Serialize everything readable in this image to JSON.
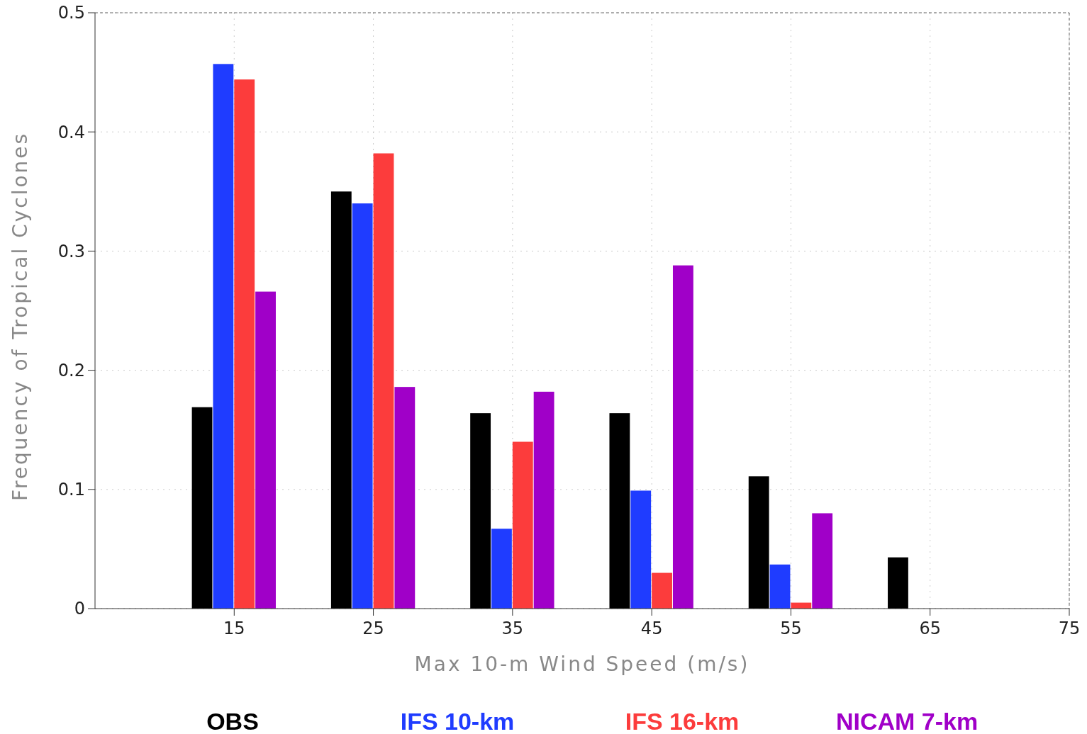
{
  "chart_data": {
    "type": "bar",
    "xlabel": "Max 10-m Wind Speed (m/s)",
    "ylabel": "Frequency of Tropical Cyclones",
    "x": [
      15,
      25,
      35,
      45,
      55,
      65
    ],
    "series": [
      {
        "name": "OBS",
        "color": "#000000",
        "values": [
          0.169,
          0.35,
          0.164,
          0.164,
          0.111,
          0.043
        ]
      },
      {
        "name": "IFS 10-km",
        "color": "#1f3cff",
        "values": [
          0.457,
          0.34,
          0.067,
          0.099,
          0.037,
          0
        ]
      },
      {
        "name": "IFS 16-km",
        "color": "#fc3c3c",
        "values": [
          0.444,
          0.382,
          0.14,
          0.03,
          0.005,
          0
        ]
      },
      {
        "name": "NICAM 7-km",
        "color": "#a000c8",
        "values": [
          0.266,
          0.186,
          0.182,
          0.288,
          0.08,
          0
        ]
      }
    ],
    "xlim": [
      5,
      75
    ],
    "xticks": [
      15,
      25,
      35,
      45,
      55,
      65,
      75
    ],
    "ylim": [
      0,
      0.5
    ],
    "yticks": [
      0,
      0.1,
      0.2,
      0.3,
      0.4,
      0.5
    ],
    "grid": true,
    "legend": "bottom"
  }
}
